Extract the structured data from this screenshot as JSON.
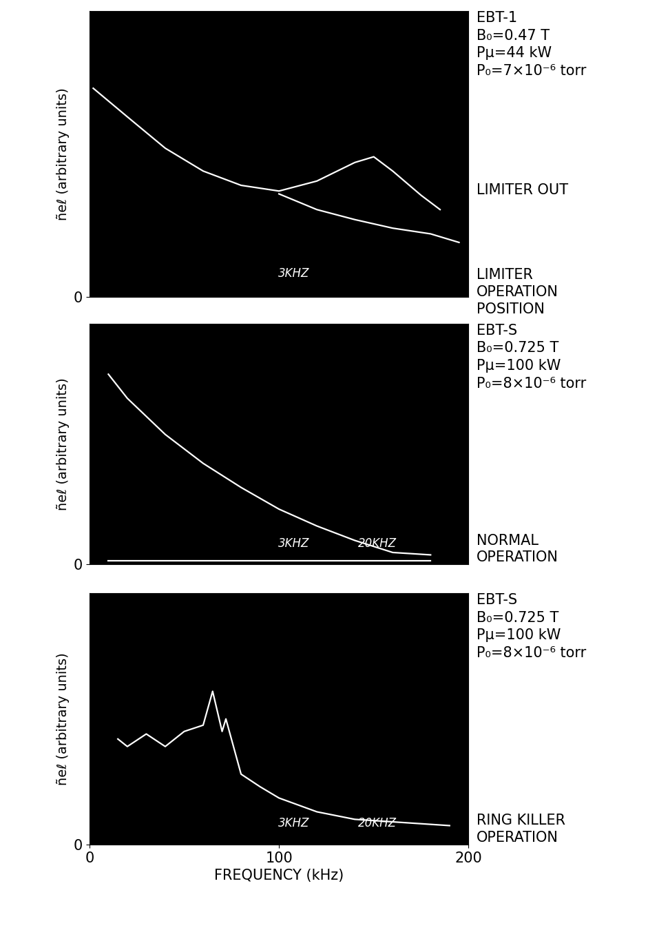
{
  "chart_data": [
    {
      "type": "line",
      "header": "EBT-1\nB₀=0.47 T\nPμ=44 kW\nP₀=7×10⁻⁶ torr",
      "annotations": [
        "LIMITER OUT",
        "LIMITER\nOPERATION\nPOSITION"
      ],
      "inset_labels": [
        "3KHZ"
      ],
      "y_label": "ñeℓ (arbitrary units)",
      "xlim": [
        0,
        200
      ],
      "xticks": [
        0,
        100,
        200
      ],
      "ylim": [
        0,
        10
      ],
      "yticks": [
        0
      ],
      "tick_labels": "y",
      "series": [
        {
          "color": "#ffffff",
          "x": [
            2,
            20,
            40,
            60,
            80,
            100,
            120,
            140,
            150,
            160,
            175,
            185
          ],
          "values": [
            7.3,
            6.3,
            5.2,
            4.4,
            3.9,
            3.7,
            4.05,
            4.7,
            4.9,
            4.4,
            3.55,
            3.05
          ]
        },
        {
          "color": "#ffffff",
          "x": [
            100,
            120,
            140,
            160,
            180,
            195
          ],
          "values": [
            3.6,
            3.05,
            2.7,
            2.4,
            2.2,
            1.9
          ]
        }
      ]
    },
    {
      "type": "line",
      "header": "EBT-S\nB₀=0.725 T\nPμ=100 kW\nP₀=8×10⁻⁶ torr",
      "annotations": [
        "NORMAL\nOPERATION"
      ],
      "inset_labels": [
        "3KHZ",
        "20KHZ"
      ],
      "y_label": "ñeℓ (arbitrary units)",
      "xlim": [
        0,
        200
      ],
      "xticks": [
        0,
        100,
        200
      ],
      "ylim": [
        0,
        10
      ],
      "yticks": [
        0
      ],
      "tick_labels": "y",
      "series": [
        {
          "color": "#ffffff",
          "x": [
            10,
            20,
            40,
            60,
            80,
            100,
            120,
            140,
            160,
            180
          ],
          "values": [
            7.9,
            6.9,
            5.4,
            4.2,
            3.2,
            2.3,
            1.6,
            1.0,
            0.5,
            0.4
          ]
        },
        {
          "color": "#ffffff",
          "x": [
            10,
            180
          ],
          "values": [
            0.15,
            0.15
          ]
        }
      ]
    },
    {
      "type": "line",
      "header": "EBT-S\nB₀=0.725 T\nPμ=100 kW\nP₀=8×10⁻⁶ torr",
      "annotations": [
        "RING KILLER\nOPERATION"
      ],
      "inset_labels": [
        "3KHZ",
        "20KHZ"
      ],
      "y_label": "ñeℓ (arbitrary units)",
      "x_label": "FREQUENCY (kHz)",
      "xlim": [
        0,
        200
      ],
      "xticks": [
        0,
        100,
        200
      ],
      "ylim": [
        0,
        10
      ],
      "yticks": [
        0
      ],
      "series": [
        {
          "color": "#ffffff",
          "x": [
            15,
            20,
            30,
            40,
            50,
            60,
            65,
            70,
            72,
            80,
            90,
            100,
            120,
            140,
            160,
            180,
            190
          ],
          "values": [
            4.2,
            3.9,
            4.4,
            3.9,
            4.5,
            4.75,
            6.1,
            4.5,
            5.0,
            2.8,
            2.3,
            1.85,
            1.3,
            1.0,
            0.9,
            0.8,
            0.75
          ]
        }
      ]
    }
  ]
}
